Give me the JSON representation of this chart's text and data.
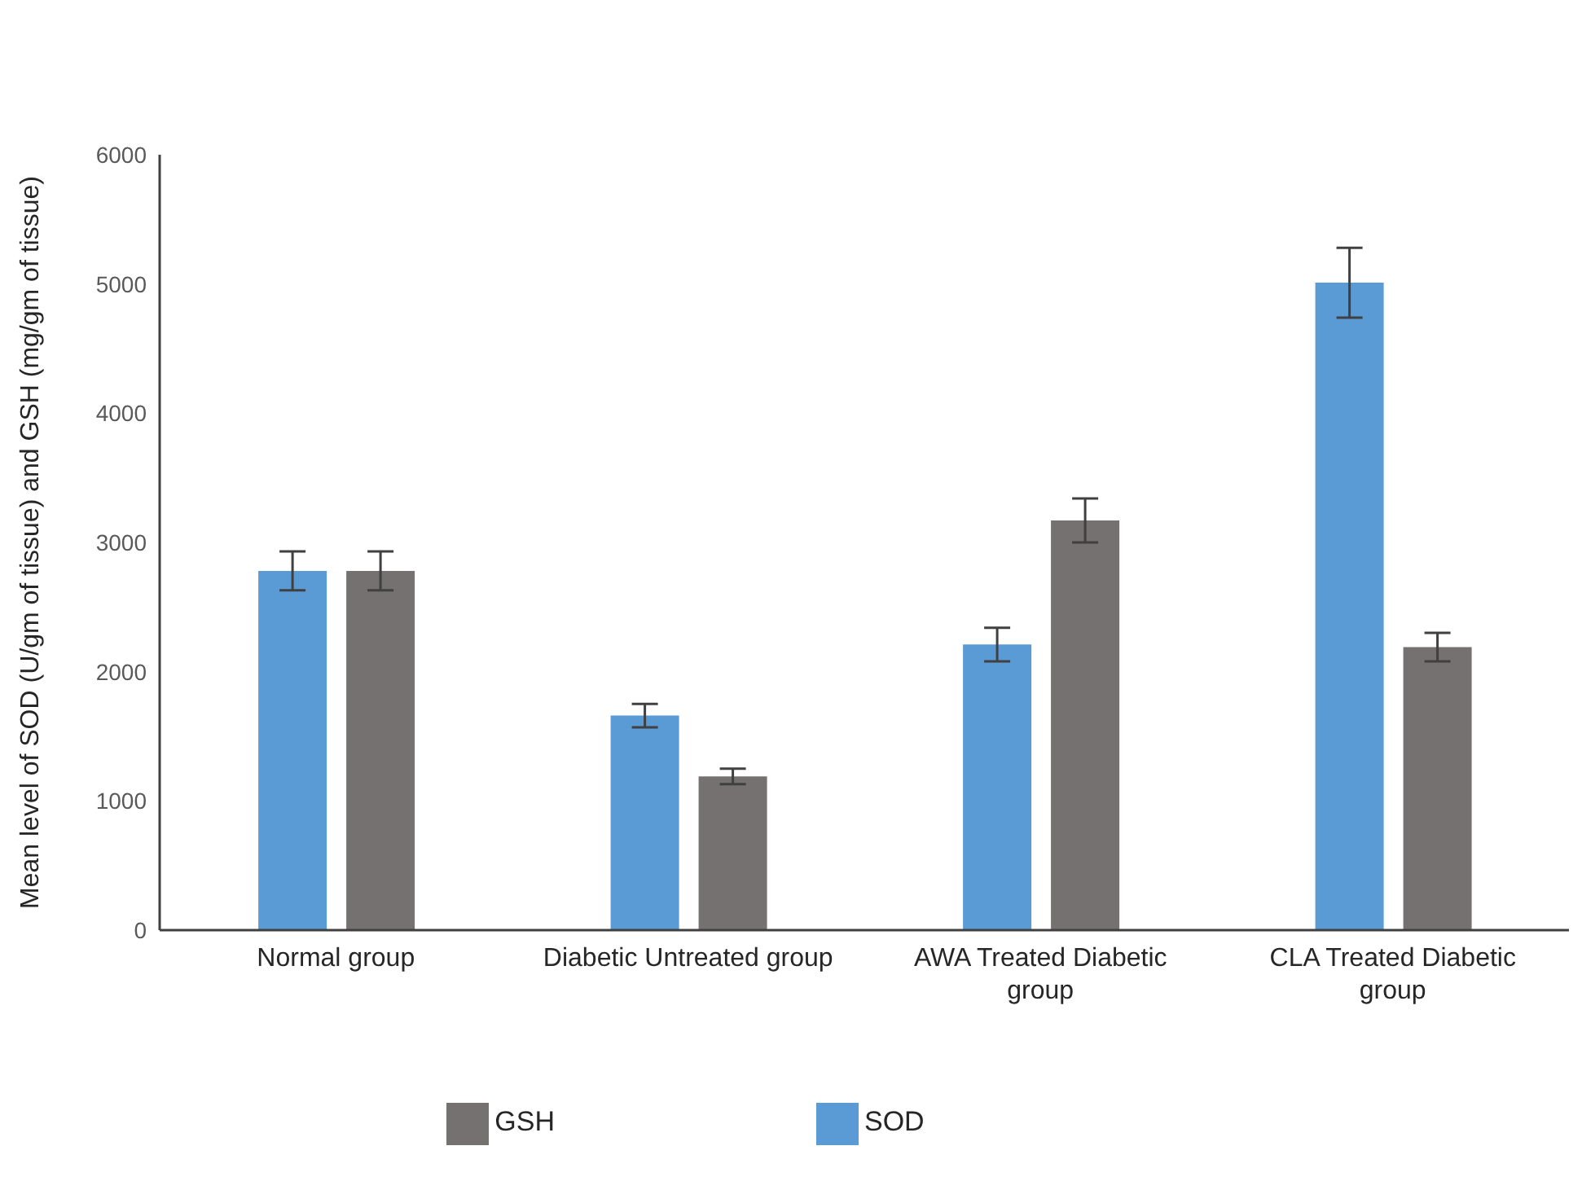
{
  "chart_data": {
    "type": "bar",
    "ylabel": "Mean level of SOD (U/gm of tissue) and GSH (mg/gm of tissue)",
    "categories": [
      "Normal group",
      "Diabetic Untreated group",
      "AWA Treated Diabetic group",
      "CLA Treated Diabetic group"
    ],
    "series": [
      {
        "name": "SOD",
        "color": "#5b9bd5",
        "values": [
          2780,
          1660,
          2210,
          5010
        ],
        "errors": [
          150,
          90,
          130,
          270
        ]
      },
      {
        "name": "GSH",
        "color": "#767171",
        "values": [
          2780,
          1190,
          3170,
          2190
        ],
        "errors": [
          150,
          60,
          170,
          110
        ]
      }
    ],
    "ylim": [
      0,
      6000
    ],
    "yticks": [
      0,
      1000,
      2000,
      3000,
      4000,
      5000,
      6000
    ],
    "grid": false,
    "legend": "bottom"
  }
}
